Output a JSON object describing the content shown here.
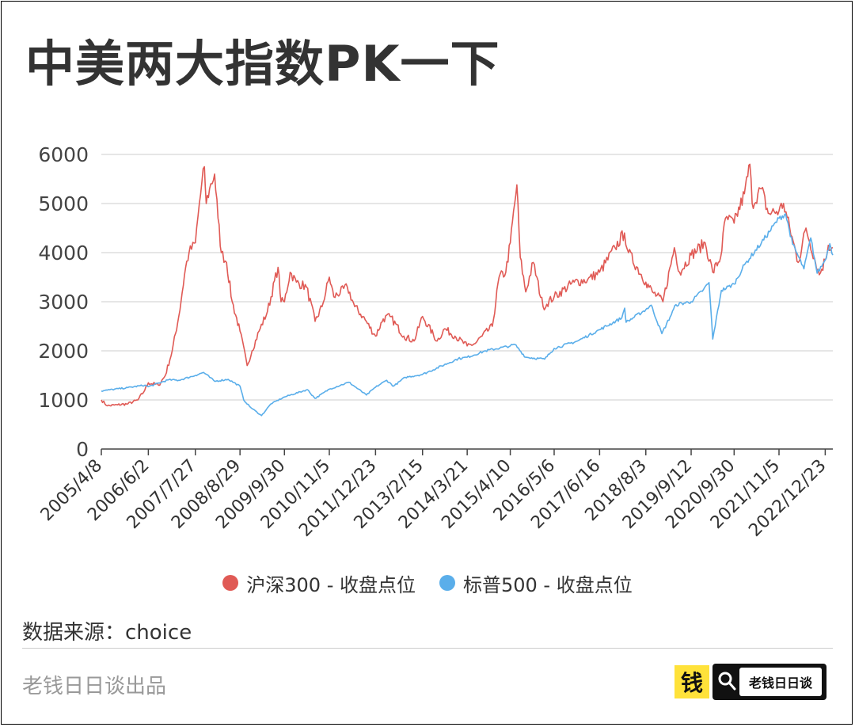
{
  "title": "中美两大指数PK一下",
  "source": "数据来源：choice",
  "credit": "老钱日日谈出品",
  "logo": {
    "badge_char": "钱",
    "search_text": "老钱日日谈",
    "badge_color": "#ffe23a"
  },
  "chart_data": {
    "type": "line",
    "title": "",
    "xlabel": "",
    "ylabel": "",
    "ylim": [
      0,
      6000
    ],
    "yticks": [
      0,
      1000,
      2000,
      3000,
      4000,
      5000,
      6000
    ],
    "x_tick_labels": [
      "2005/4/8",
      "2006/6/2",
      "2007/7/27",
      "2008/8/29",
      "2009/9/30",
      "2010/11/5",
      "2011/12/23",
      "2013/2/15",
      "2014/3/21",
      "2015/4/10",
      "2016/5/6",
      "2017/6/16",
      "2018/8/3",
      "2019/9/12",
      "2020/9/30",
      "2021/11/5",
      "2022/12/23"
    ],
    "x_range": [
      "2005/4/8",
      "2023/3/1"
    ],
    "grid": true,
    "legend_position": "bottom",
    "series": [
      {
        "name": "沪深300 - 收盘点位",
        "color": "#e05a55",
        "points": [
          [
            "2005/4/8",
            1000
          ],
          [
            "2005/6/1",
            880
          ],
          [
            "2005/9/1",
            900
          ],
          [
            "2005/12/1",
            920
          ],
          [
            "2006/3/1",
            1000
          ],
          [
            "2006/5/1",
            1200
          ],
          [
            "2006/6/2",
            1350
          ],
          [
            "2006/9/1",
            1300
          ],
          [
            "2006/11/1",
            1500
          ],
          [
            "2007/1/1",
            2000
          ],
          [
            "2007/3/1",
            2700
          ],
          [
            "2007/5/1",
            3700
          ],
          [
            "2007/6/1",
            4000
          ],
          [
            "2007/7/27",
            4200
          ],
          [
            "2007/9/1",
            5000
          ],
          [
            "2007/10/16",
            5750
          ],
          [
            "2007/11/1",
            5000
          ],
          [
            "2007/12/1",
            5300
          ],
          [
            "2008/1/15",
            5600
          ],
          [
            "2008/2/15",
            4700
          ],
          [
            "2008/3/15",
            4000
          ],
          [
            "2008/5/1",
            3800
          ],
          [
            "2008/6/20",
            3000
          ],
          [
            "2008/8/29",
            2400
          ],
          [
            "2008/11/1",
            1700
          ],
          [
            "2008/12/15",
            2000
          ],
          [
            "2009/2/15",
            2400
          ],
          [
            "2009/5/1",
            2800
          ],
          [
            "2009/8/4",
            3700
          ],
          [
            "2009/8/31",
            3000
          ],
          [
            "2009/9/30",
            3000
          ],
          [
            "2009/11/20",
            3600
          ],
          [
            "2010/1/15",
            3400
          ],
          [
            "2010/4/15",
            3300
          ],
          [
            "2010/7/1",
            2600
          ],
          [
            "2010/9/1",
            2900
          ],
          [
            "2010/11/5",
            3500
          ],
          [
            "2010/12/15",
            3100
          ],
          [
            "2011/4/15",
            3300
          ],
          [
            "2011/6/20",
            2900
          ],
          [
            "2011/9/1",
            2700
          ],
          [
            "2011/12/23",
            2300
          ],
          [
            "2012/3/1",
            2650
          ],
          [
            "2012/5/1",
            2700
          ],
          [
            "2012/9/1",
            2300
          ],
          [
            "2012/12/1",
            2200
          ],
          [
            "2013/2/15",
            2700
          ],
          [
            "2013/6/25",
            2200
          ],
          [
            "2013/9/1",
            2450
          ],
          [
            "2013/12/1",
            2300
          ],
          [
            "2014/3/21",
            2100
          ],
          [
            "2014/6/1",
            2150
          ],
          [
            "2014/8/1",
            2300
          ],
          [
            "2014/11/1",
            2500
          ],
          [
            "2014/12/31",
            3500
          ],
          [
            "2015/3/1",
            3600
          ],
          [
            "2015/4/10",
            4200
          ],
          [
            "2015/6/8",
            5380
          ],
          [
            "2015/7/8",
            3900
          ],
          [
            "2015/8/26",
            3200
          ],
          [
            "2015/11/1",
            3800
          ],
          [
            "2016/1/28",
            2900
          ],
          [
            "2016/5/6",
            3100
          ],
          [
            "2016/11/1",
            3400
          ],
          [
            "2017/3/1",
            3450
          ],
          [
            "2017/6/16",
            3600
          ],
          [
            "2017/11/1",
            4100
          ],
          [
            "2018/1/24",
            4400
          ],
          [
            "2018/3/1",
            4000
          ],
          [
            "2018/8/3",
            3400
          ],
          [
            "2018/10/1",
            3200
          ],
          [
            "2019/1/3",
            3000
          ],
          [
            "2019/4/15",
            4100
          ],
          [
            "2019/6/1",
            3600
          ],
          [
            "2019/9/12",
            3950
          ],
          [
            "2020/1/15",
            4200
          ],
          [
            "2020/3/23",
            3600
          ],
          [
            "2020/6/1",
            3900
          ],
          [
            "2020/7/15",
            4700
          ],
          [
            "2020/9/30",
            4600
          ],
          [
            "2020/12/31",
            5200
          ],
          [
            "2021/2/18",
            5800
          ],
          [
            "2021/3/10",
            5000
          ],
          [
            "2021/6/1",
            5300
          ],
          [
            "2021/8/1",
            4800
          ],
          [
            "2021/11/5",
            4850
          ],
          [
            "2021/12/15",
            5000
          ],
          [
            "2022/4/26",
            3800
          ],
          [
            "2022/7/4",
            4500
          ],
          [
            "2022/10/31",
            3550
          ],
          [
            "2022/12/23",
            3850
          ],
          [
            "2023/1/20",
            4150
          ],
          [
            "2023/3/1",
            4100
          ]
        ]
      },
      {
        "name": "标普500 - 收盘点位",
        "color": "#5aaeea",
        "points": [
          [
            "2005/4/8",
            1180
          ],
          [
            "2005/6/1",
            1200
          ],
          [
            "2005/12/1",
            1250
          ],
          [
            "2006/5/1",
            1300
          ],
          [
            "2006/6/2",
            1270
          ],
          [
            "2006/12/1",
            1410
          ],
          [
            "2007/3/1",
            1400
          ],
          [
            "2007/7/27",
            1500
          ],
          [
            "2007/10/9",
            1560
          ],
          [
            "2008/1/15",
            1380
          ],
          [
            "2008/5/15",
            1420
          ],
          [
            "2008/8/29",
            1280
          ],
          [
            "2008/10/1",
            1000
          ],
          [
            "2008/12/1",
            850
          ],
          [
            "2009/3/9",
            680
          ],
          [
            "2009/6/1",
            920
          ],
          [
            "2009/9/30",
            1060
          ],
          [
            "2010/4/23",
            1210
          ],
          [
            "2010/7/1",
            1030
          ],
          [
            "2010/11/5",
            1220
          ],
          [
            "2011/4/29",
            1360
          ],
          [
            "2011/10/3",
            1100
          ],
          [
            "2011/12/23",
            1260
          ],
          [
            "2012/4/1",
            1400
          ],
          [
            "2012/6/1",
            1280
          ],
          [
            "2012/9/14",
            1460
          ],
          [
            "2013/2/15",
            1520
          ],
          [
            "2013/12/31",
            1840
          ],
          [
            "2014/3/21",
            1870
          ],
          [
            "2014/9/1",
            2000
          ],
          [
            "2015/4/10",
            2100
          ],
          [
            "2015/5/21",
            2130
          ],
          [
            "2015/8/25",
            1870
          ],
          [
            "2016/2/11",
            1830
          ],
          [
            "2016/5/6",
            2050
          ],
          [
            "2016/12/1",
            2200
          ],
          [
            "2017/6/16",
            2430
          ],
          [
            "2017/12/31",
            2670
          ],
          [
            "2018/1/26",
            2870
          ],
          [
            "2018/2/8",
            2580
          ],
          [
            "2018/8/3",
            2840
          ],
          [
            "2018/9/20",
            2930
          ],
          [
            "2018/12/24",
            2350
          ],
          [
            "2019/4/30",
            2940
          ],
          [
            "2019/9/12",
            3000
          ],
          [
            "2020/1/1",
            3250
          ],
          [
            "2020/2/19",
            3390
          ],
          [
            "2020/3/23",
            2240
          ],
          [
            "2020/6/8",
            3230
          ],
          [
            "2020/9/30",
            3360
          ],
          [
            "2020/12/31",
            3750
          ],
          [
            "2021/6/1",
            4200
          ],
          [
            "2021/11/5",
            4700
          ],
          [
            "2022/1/3",
            4790
          ],
          [
            "2022/3/7",
            4170
          ],
          [
            "2022/6/16",
            3670
          ],
          [
            "2022/8/16",
            4300
          ],
          [
            "2022/10/12",
            3580
          ],
          [
            "2022/12/23",
            3850
          ],
          [
            "2023/2/2",
            4180
          ],
          [
            "2023/3/1",
            3950
          ]
        ]
      }
    ]
  }
}
